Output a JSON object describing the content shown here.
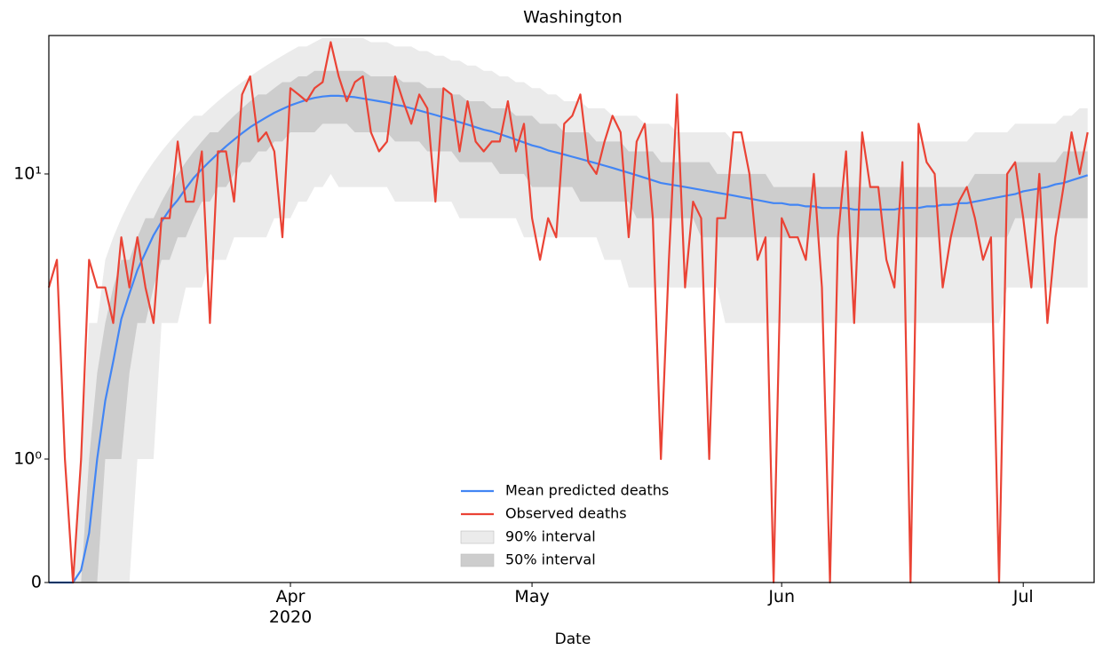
{
  "chart_data": {
    "type": "line",
    "title": "Washington",
    "x_label": "Date",
    "xlim": [
      0,
      129.8
    ],
    "xticks": [
      {
        "value": 30,
        "label": "Apr\n2020"
      },
      {
        "value": 60,
        "label": "May"
      },
      {
        "value": 91,
        "label": "Jun"
      },
      {
        "value": 121,
        "label": "Jul"
      }
    ],
    "yscale": "symlog",
    "linthresh": 1,
    "ylim": [
      0,
      30.6
    ],
    "yticks": [
      0,
      {
        "value": 1,
        "label": "10⁰"
      },
      {
        "value": 10,
        "label": "10¹"
      }
    ],
    "x": [
      0,
      1,
      2,
      3,
      4,
      5,
      6,
      7,
      8,
      9,
      10,
      11,
      12,
      13,
      14,
      15,
      16,
      17,
      18,
      19,
      20,
      21,
      22,
      23,
      24,
      25,
      26,
      27,
      28,
      29,
      30,
      31,
      32,
      33,
      34,
      35,
      36,
      37,
      38,
      39,
      40,
      41,
      42,
      43,
      44,
      45,
      46,
      47,
      48,
      49,
      50,
      51,
      52,
      53,
      54,
      55,
      56,
      57,
      58,
      59,
      60,
      61,
      62,
      63,
      64,
      65,
      66,
      67,
      68,
      69,
      70,
      71,
      72,
      73,
      74,
      75,
      76,
      77,
      78,
      79,
      80,
      81,
      82,
      83,
      84,
      85,
      86,
      87,
      88,
      89,
      90,
      91,
      92,
      93,
      94,
      95,
      96,
      97,
      98,
      99,
      100,
      101,
      102,
      103,
      104,
      105,
      106,
      107,
      108,
      109,
      110,
      111,
      112,
      113,
      114,
      115,
      116,
      117,
      118,
      119,
      120,
      121,
      122,
      123,
      124,
      125,
      126,
      127,
      128,
      129
    ],
    "bands": [
      {
        "name": "90% interval",
        "color": "#ebebeb",
        "lower": [
          0,
          0,
          0,
          0,
          0,
          0,
          0,
          0,
          0,
          0,
          0,
          1,
          1,
          1,
          3,
          3,
          3,
          4,
          4,
          4,
          5,
          5,
          5,
          6,
          6,
          6,
          6,
          6,
          7,
          7,
          7,
          8,
          8,
          9,
          9,
          10,
          9,
          9,
          9,
          9,
          9,
          9,
          9,
          8,
          8,
          8,
          8,
          8,
          8,
          8,
          8,
          7,
          7,
          7,
          7,
          7,
          7,
          7,
          7,
          6,
          6,
          6,
          6,
          6,
          6,
          6,
          6,
          6,
          6,
          5,
          5,
          5,
          4,
          4,
          4,
          4,
          4,
          4,
          4,
          4,
          4,
          4,
          4,
          4,
          3,
          3,
          3,
          3,
          3,
          3,
          3,
          3,
          3,
          3,
          3,
          3,
          3,
          3,
          3,
          3,
          3,
          3,
          3,
          3,
          3,
          3,
          3,
          3,
          3,
          3,
          3,
          3,
          3,
          3,
          3,
          3,
          3,
          3,
          3,
          4,
          4,
          4,
          4,
          4,
          4,
          4,
          4,
          4,
          4,
          4
        ],
        "upper": [
          0,
          0,
          0,
          0,
          1,
          3,
          3,
          5,
          6,
          7,
          8,
          9,
          10,
          11,
          12,
          13,
          14,
          15,
          16,
          16,
          17,
          18,
          19,
          20,
          21,
          22,
          23,
          24,
          25,
          26,
          27,
          28,
          28,
          29,
          30,
          30,
          30,
          30,
          30,
          30,
          29,
          29,
          29,
          28,
          28,
          28,
          27,
          27,
          26,
          26,
          25,
          25,
          24,
          24,
          23,
          23,
          22,
          22,
          21,
          21,
          20,
          20,
          19,
          19,
          18,
          18,
          18,
          17,
          17,
          17,
          16,
          16,
          16,
          16,
          15,
          15,
          15,
          15,
          14,
          14,
          14,
          14,
          14,
          14,
          14,
          13,
          13,
          13,
          13,
          13,
          13,
          13,
          13,
          13,
          13,
          13,
          13,
          13,
          13,
          13,
          13,
          13,
          13,
          13,
          13,
          13,
          13,
          13,
          13,
          13,
          13,
          13,
          13,
          13,
          13,
          14,
          14,
          14,
          14,
          14,
          15,
          15,
          15,
          15,
          15,
          15,
          16,
          16,
          17,
          17
        ]
      },
      {
        "name": "50% interval",
        "color": "#cdcdcd",
        "lower": [
          0,
          0,
          0,
          0,
          0,
          0,
          0,
          1,
          1,
          1,
          2,
          3,
          3,
          4,
          5,
          5,
          6,
          6,
          7,
          8,
          8,
          9,
          9,
          10,
          11,
          11,
          12,
          12,
          13,
          13,
          14,
          14,
          14,
          14,
          15,
          15,
          15,
          15,
          14,
          14,
          14,
          14,
          14,
          13,
          13,
          13,
          13,
          12,
          12,
          12,
          12,
          11,
          11,
          11,
          11,
          11,
          10,
          10,
          10,
          10,
          9,
          9,
          9,
          9,
          9,
          9,
          8,
          8,
          8,
          8,
          8,
          8,
          8,
          7,
          7,
          7,
          7,
          7,
          7,
          7,
          7,
          6,
          6,
          6,
          6,
          6,
          6,
          6,
          6,
          6,
          6,
          6,
          6,
          6,
          6,
          6,
          6,
          6,
          6,
          6,
          6,
          6,
          6,
          6,
          6,
          6,
          6,
          6,
          6,
          6,
          6,
          6,
          6,
          6,
          6,
          6,
          6,
          6,
          6,
          6,
          7,
          7,
          7,
          7,
          7,
          7,
          7,
          7,
          7,
          7
        ],
        "upper": [
          0,
          0,
          0,
          0,
          0,
          1,
          2,
          3,
          4,
          5,
          5,
          6,
          7,
          7,
          8,
          9,
          10,
          11,
          12,
          13,
          14,
          14,
          15,
          16,
          17,
          18,
          19,
          19,
          20,
          21,
          21,
          22,
          22,
          23,
          23,
          23,
          23,
          23,
          23,
          23,
          22,
          22,
          22,
          22,
          21,
          21,
          21,
          20,
          20,
          20,
          19,
          19,
          18,
          18,
          18,
          17,
          17,
          17,
          16,
          16,
          16,
          15,
          15,
          15,
          14,
          14,
          14,
          14,
          13,
          13,
          13,
          13,
          12,
          12,
          12,
          12,
          11,
          11,
          11,
          11,
          11,
          11,
          11,
          10,
          10,
          10,
          10,
          10,
          10,
          10,
          9,
          9,
          9,
          9,
          9,
          9,
          9,
          9,
          9,
          9,
          9,
          9,
          9,
          9,
          9,
          9,
          9,
          9,
          9,
          9,
          9,
          9,
          9,
          9,
          9,
          10,
          10,
          10,
          10,
          10,
          11,
          11,
          11,
          11,
          11,
          11,
          12,
          12,
          12,
          12
        ]
      }
    ],
    "series": [
      {
        "name": "Mean predicted deaths",
        "color": "#4285f4",
        "values": [
          0,
          0,
          0,
          0,
          0.1,
          0.4,
          1,
          1.6,
          2.2,
          3.1,
          3.8,
          4.6,
          5.3,
          6.1,
          6.8,
          7.5,
          8.1,
          8.9,
          9.7,
          10.4,
          11.1,
          11.8,
          12.5,
          13.2,
          13.9,
          14.6,
          15.2,
          15.8,
          16.4,
          16.9,
          17.4,
          17.8,
          18.2,
          18.5,
          18.7,
          18.8,
          18.8,
          18.7,
          18.6,
          18.4,
          18.2,
          18,
          17.8,
          17.5,
          17.3,
          17,
          16.7,
          16.4,
          16.1,
          15.8,
          15.5,
          15.2,
          14.9,
          14.6,
          14.3,
          14.1,
          13.8,
          13.5,
          13.2,
          12.9,
          12.6,
          12.4,
          12.1,
          11.9,
          11.7,
          11.5,
          11.3,
          11.1,
          10.9,
          10.7,
          10.5,
          10.3,
          10.1,
          9.9,
          9.7,
          9.5,
          9.3,
          9.2,
          9.1,
          9,
          8.9,
          8.8,
          8.7,
          8.6,
          8.5,
          8.4,
          8.3,
          8.2,
          8.1,
          8,
          7.9,
          7.9,
          7.8,
          7.8,
          7.7,
          7.7,
          7.6,
          7.6,
          7.6,
          7.6,
          7.5,
          7.5,
          7.5,
          7.5,
          7.5,
          7.5,
          7.6,
          7.6,
          7.6,
          7.7,
          7.7,
          7.8,
          7.8,
          7.9,
          7.9,
          8,
          8.1,
          8.2,
          8.3,
          8.4,
          8.5,
          8.7,
          8.8,
          8.9,
          9,
          9.2,
          9.3,
          9.5,
          9.7,
          9.9
        ]
      },
      {
        "name": "Observed deaths",
        "color": "#ea4335",
        "values": [
          4,
          5,
          1,
          0,
          1,
          5,
          4,
          4,
          3,
          6,
          4,
          6,
          4,
          3,
          7,
          7,
          13,
          8,
          8,
          12,
          3,
          12,
          12,
          8,
          19,
          22,
          13,
          14,
          12,
          6,
          20,
          19,
          18,
          20,
          21,
          29,
          22,
          18,
          21,
          22,
          14,
          12,
          13,
          22,
          18,
          15,
          19,
          17,
          8,
          20,
          19,
          12,
          18,
          13,
          12,
          13,
          13,
          18,
          12,
          15,
          7,
          5,
          7,
          6,
          15,
          16,
          19,
          11,
          10,
          13,
          16,
          14,
          6,
          13,
          15,
          7,
          1,
          5,
          19,
          4,
          8,
          7,
          1,
          7,
          7,
          14,
          14,
          10,
          5,
          6,
          0,
          7,
          6,
          6,
          5,
          10,
          4,
          0,
          6,
          12,
          3,
          14,
          9,
          9,
          5,
          4,
          11,
          0,
          15,
          11,
          10,
          4,
          6,
          8,
          9,
          7,
          5,
          6,
          0,
          10,
          11,
          7,
          4,
          10,
          3,
          6,
          9,
          14,
          10,
          14
        ]
      }
    ]
  }
}
